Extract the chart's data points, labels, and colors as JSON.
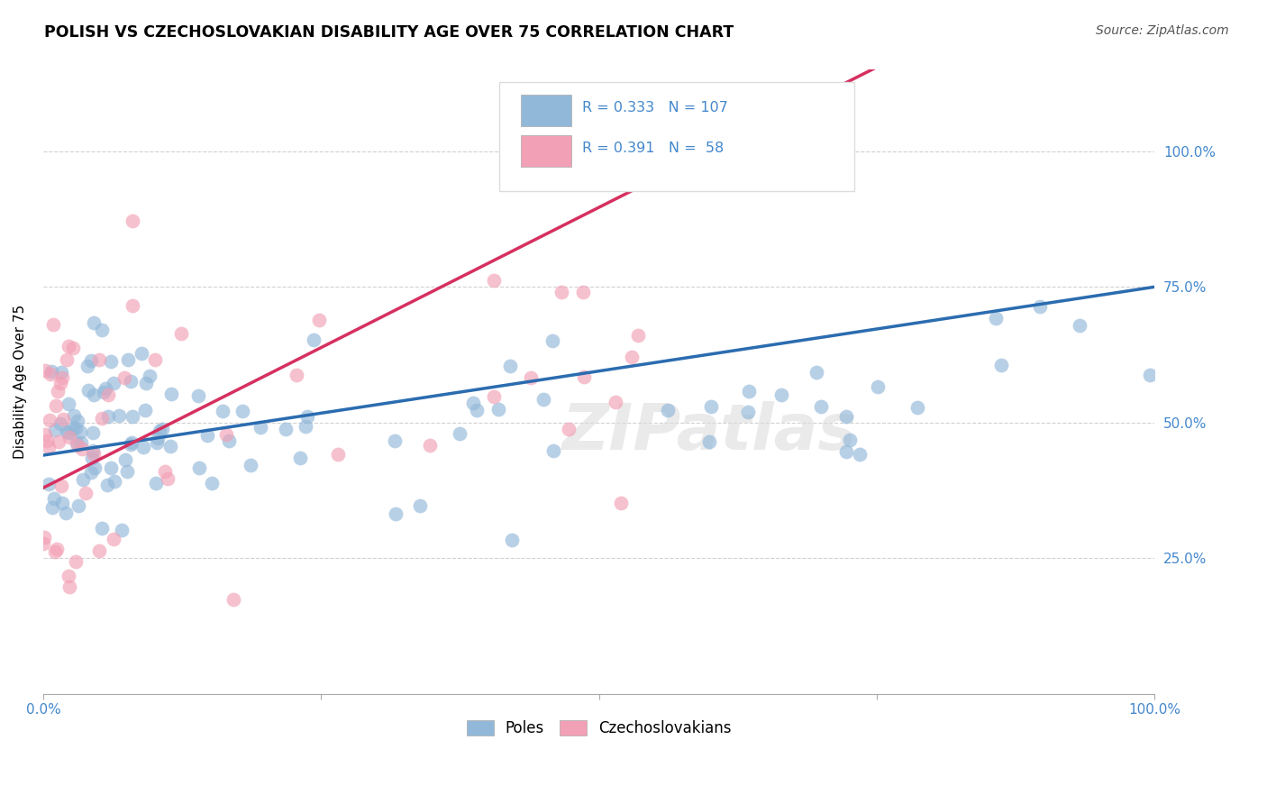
{
  "title": "POLISH VS CZECHOSLOVAKIAN DISABILITY AGE OVER 75 CORRELATION CHART",
  "source": "Source: ZipAtlas.com",
  "ylabel": "Disability Age Over 75",
  "blue_R": 0.333,
  "blue_N": 107,
  "pink_R": 0.391,
  "pink_N": 58,
  "blue_color": "#92b8d9",
  "pink_color": "#f2a0b5",
  "blue_line_color": "#2b6cb0",
  "pink_line_color": "#d63060",
  "legend_label_blue": "Poles",
  "legend_label_pink": "Czechoslovakians",
  "watermark": "ZIPatlas",
  "background_color": "#ffffff",
  "grid_color": "#cccccc",
  "axis_text_color": "#4488cc",
  "title_color": "#000000",
  "source_color": "#555555",
  "blue_intercept": 44.0,
  "blue_slope": 0.31,
  "pink_intercept": 38.0,
  "pink_slope": 1.033
}
